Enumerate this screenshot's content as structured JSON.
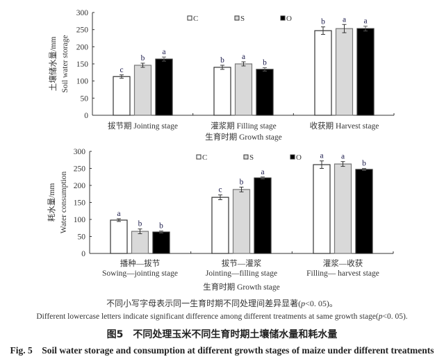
{
  "colors": {
    "C": "#ffffff",
    "S": "#d9d9d9",
    "O": "#000000",
    "letters": "#1a1a4a"
  },
  "chart_data": [
    {
      "type": "bar",
      "title": "",
      "ylabel_cn": "土壤储水量/mm",
      "ylabel_en": "Soil water storage",
      "xlabel": "生育时期 Growth stage",
      "ylim": [
        0,
        300
      ],
      "yticks": [
        "0",
        "50",
        "100",
        "150",
        "200",
        "250",
        "300"
      ],
      "categories": [
        {
          "line1": "拔节期 Jointing stage",
          "line2": ""
        },
        {
          "line1": "灌浆期 Filling stage",
          "line2": ""
        },
        {
          "line1": "收获期 Harvest stage",
          "line2": ""
        }
      ],
      "legend": [
        "C",
        "S",
        "O"
      ],
      "legend_position": "top-center",
      "series": [
        {
          "name": "C",
          "values": [
            113,
            140,
            247
          ],
          "errors": [
            5,
            6,
            11
          ],
          "letters": [
            "c",
            "b",
            "b"
          ]
        },
        {
          "name": "S",
          "values": [
            146,
            150,
            253
          ],
          "errors": [
            6,
            6,
            12
          ],
          "letters": [
            "b",
            "a",
            "a"
          ]
        },
        {
          "name": "O",
          "values": [
            164,
            134,
            253
          ],
          "errors": [
            6,
            5,
            7
          ],
          "letters": [
            "a",
            "b",
            "a"
          ]
        }
      ]
    },
    {
      "type": "bar",
      "title": "",
      "ylabel_cn": "耗水量/mm",
      "ylabel_en": "Water consumption",
      "xlabel": "生育时期 Growth stage",
      "ylim": [
        0,
        300
      ],
      "yticks": [
        "0",
        "50",
        "100",
        "150",
        "200",
        "250",
        "300"
      ],
      "categories": [
        {
          "line1": "播种—拔节",
          "line2": "Sowing—jointing stage"
        },
        {
          "line1": "拔节—灌浆",
          "line2": "Jointing—filling stage"
        },
        {
          "line1": "灌浆—收获",
          "line2": "Filling— harvest stage"
        }
      ],
      "legend": [
        "C",
        "S",
        "O"
      ],
      "legend_position": "top-center",
      "series": [
        {
          "name": "C",
          "values": [
            98,
            165,
            261
          ],
          "errors": [
            4,
            7,
            11
          ],
          "letters": [
            "a",
            "c",
            "a"
          ]
        },
        {
          "name": "S",
          "values": [
            65,
            188,
            263
          ],
          "errors": [
            7,
            7,
            7
          ],
          "letters": [
            "b",
            "b",
            "a"
          ]
        },
        {
          "name": "O",
          "values": [
            63,
            222,
            247
          ],
          "errors": [
            3,
            3,
            3
          ],
          "letters": [
            "b",
            "a",
            "b"
          ]
        }
      ]
    }
  ],
  "captions": {
    "note_cn": "不同小写字母表示同一生育时期不同处理间差异显著(",
    "note_cn_p": "p",
    "note_cn_tail": "<0. 05)。",
    "note_en": "Different lowercase letters indicate significant difference among different treatments at same growth stage(",
    "note_en_p": "p",
    "note_en_tail": "<0. 05).",
    "title_cn": "图5　不同处理玉米不同生育时期土壤储水量和耗水量",
    "title_en": "Fig. 5　Soil water storage and consumption at different growth stages of maize under different treatments"
  }
}
